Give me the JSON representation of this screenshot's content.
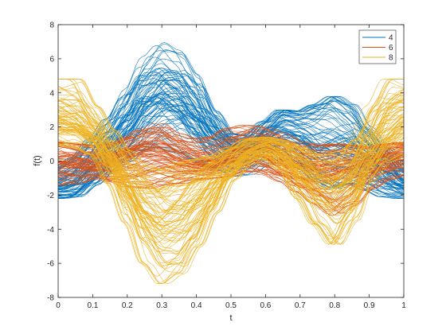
{
  "chart_data": {
    "type": "line",
    "title": "",
    "xlabel": "t",
    "ylabel": "f(t)",
    "xlim": [
      0,
      1
    ],
    "ylim": [
      -8,
      8
    ],
    "xticks": [
      0,
      0.1,
      0.2,
      0.3,
      0.4,
      0.5,
      0.6,
      0.7,
      0.8,
      0.9,
      1
    ],
    "xtick_labels": [
      "0",
      "0.1",
      "0.2",
      "0.3",
      "0.4",
      "0.5",
      "0.6",
      "0.7",
      "0.8",
      "0.9",
      "1"
    ],
    "yticks": [
      -8,
      -6,
      -4,
      -2,
      0,
      2,
      4,
      6,
      8
    ],
    "ytick_labels": [
      "-8",
      "-6",
      "-4",
      "-2",
      "0",
      "2",
      "4",
      "6",
      "8"
    ],
    "grid": false,
    "legend_position": "top-right",
    "series": [
      {
        "name": "4",
        "color": "#0072BD",
        "x": [
          0,
          0.05,
          0.1,
          0.15,
          0.2,
          0.25,
          0.3,
          0.35,
          0.4,
          0.45,
          0.5,
          0.55,
          0.6,
          0.65,
          0.7,
          0.75,
          0.8,
          0.85,
          0.9,
          0.95,
          1
        ],
        "y": [
          -1.5,
          -1.2,
          -0.3,
          0.8,
          2.0,
          3.4,
          4.0,
          3.6,
          2.5,
          1.3,
          0.6,
          0.7,
          1.3,
          1.8,
          1.5,
          0.9,
          0.9,
          0.8,
          0.2,
          -0.6,
          -1.3
        ],
        "y_min": [
          -2.2,
          -2.1,
          -1.4,
          -0.6,
          0.0,
          0.6,
          0.8,
          0.5,
          -0.1,
          -0.5,
          -0.9,
          -0.8,
          -0.2,
          0.1,
          -0.4,
          -1.2,
          -1.6,
          -1.3,
          -1.7,
          -2.1,
          -2.2
        ],
        "y_max": [
          -0.4,
          0.2,
          1.3,
          2.5,
          4.2,
          6.1,
          7.0,
          6.5,
          5.1,
          3.0,
          1.6,
          1.5,
          2.3,
          3.0,
          2.9,
          3.3,
          3.8,
          3.3,
          2.0,
          0.9,
          -0.2
        ]
      },
      {
        "name": "6",
        "color": "#D95319",
        "x": [
          0,
          0.05,
          0.1,
          0.15,
          0.2,
          0.25,
          0.3,
          0.35,
          0.4,
          0.45,
          0.5,
          0.55,
          0.6,
          0.65,
          0.7,
          0.75,
          0.8,
          0.85,
          0.9,
          0.95,
          1
        ],
        "y": [
          0.0,
          -0.1,
          -0.3,
          -0.2,
          0.2,
          0.4,
          0.3,
          0.0,
          -0.2,
          -0.2,
          0.3,
          0.7,
          0.6,
          0.1,
          -0.3,
          -0.5,
          -0.6,
          -0.5,
          -0.3,
          0.0,
          0.2
        ],
        "y_min": [
          -1.4,
          -1.3,
          -1.0,
          -1.2,
          -1.5,
          -1.6,
          -1.4,
          -1.3,
          -1.1,
          -1.0,
          -0.9,
          -0.6,
          -0.8,
          -1.2,
          -1.8,
          -2.5,
          -3.2,
          -2.6,
          -1.6,
          -1.1,
          -0.8
        ],
        "y_max": [
          1.1,
          1.0,
          0.9,
          1.0,
          1.4,
          1.9,
          2.2,
          1.6,
          1.3,
          1.4,
          1.9,
          2.1,
          2.0,
          1.6,
          1.1,
          0.9,
          1.0,
          0.9,
          0.8,
          1.0,
          1.1
        ]
      },
      {
        "name": "8",
        "color": "#EDB120",
        "x": [
          0,
          0.05,
          0.1,
          0.15,
          0.2,
          0.25,
          0.3,
          0.35,
          0.4,
          0.45,
          0.5,
          0.55,
          0.6,
          0.65,
          0.7,
          0.75,
          0.8,
          0.85,
          0.9,
          0.95,
          1
        ],
        "y": [
          2.5,
          2.2,
          1.5,
          0.2,
          -1.5,
          -3.0,
          -3.8,
          -3.5,
          -2.5,
          -1.2,
          -0.2,
          0.6,
          0.9,
          0.5,
          -0.4,
          -1.2,
          -1.6,
          -1.0,
          0.5,
          1.8,
          2.6
        ],
        "y_min": [
          0.9,
          0.8,
          0.4,
          -1.3,
          -3.6,
          -6.0,
          -7.2,
          -6.6,
          -5.0,
          -3.0,
          -1.1,
          -0.2,
          0.2,
          -0.5,
          -2.2,
          -3.7,
          -4.9,
          -3.5,
          -1.1,
          0.0,
          0.4
        ],
        "y_max": [
          4.8,
          4.8,
          3.2,
          1.8,
          0.6,
          -0.3,
          -0.5,
          -0.1,
          0.1,
          0.3,
          0.8,
          1.3,
          1.4,
          1.2,
          0.8,
          0.3,
          0.6,
          1.3,
          3.2,
          4.8,
          4.8
        ]
      }
    ]
  }
}
